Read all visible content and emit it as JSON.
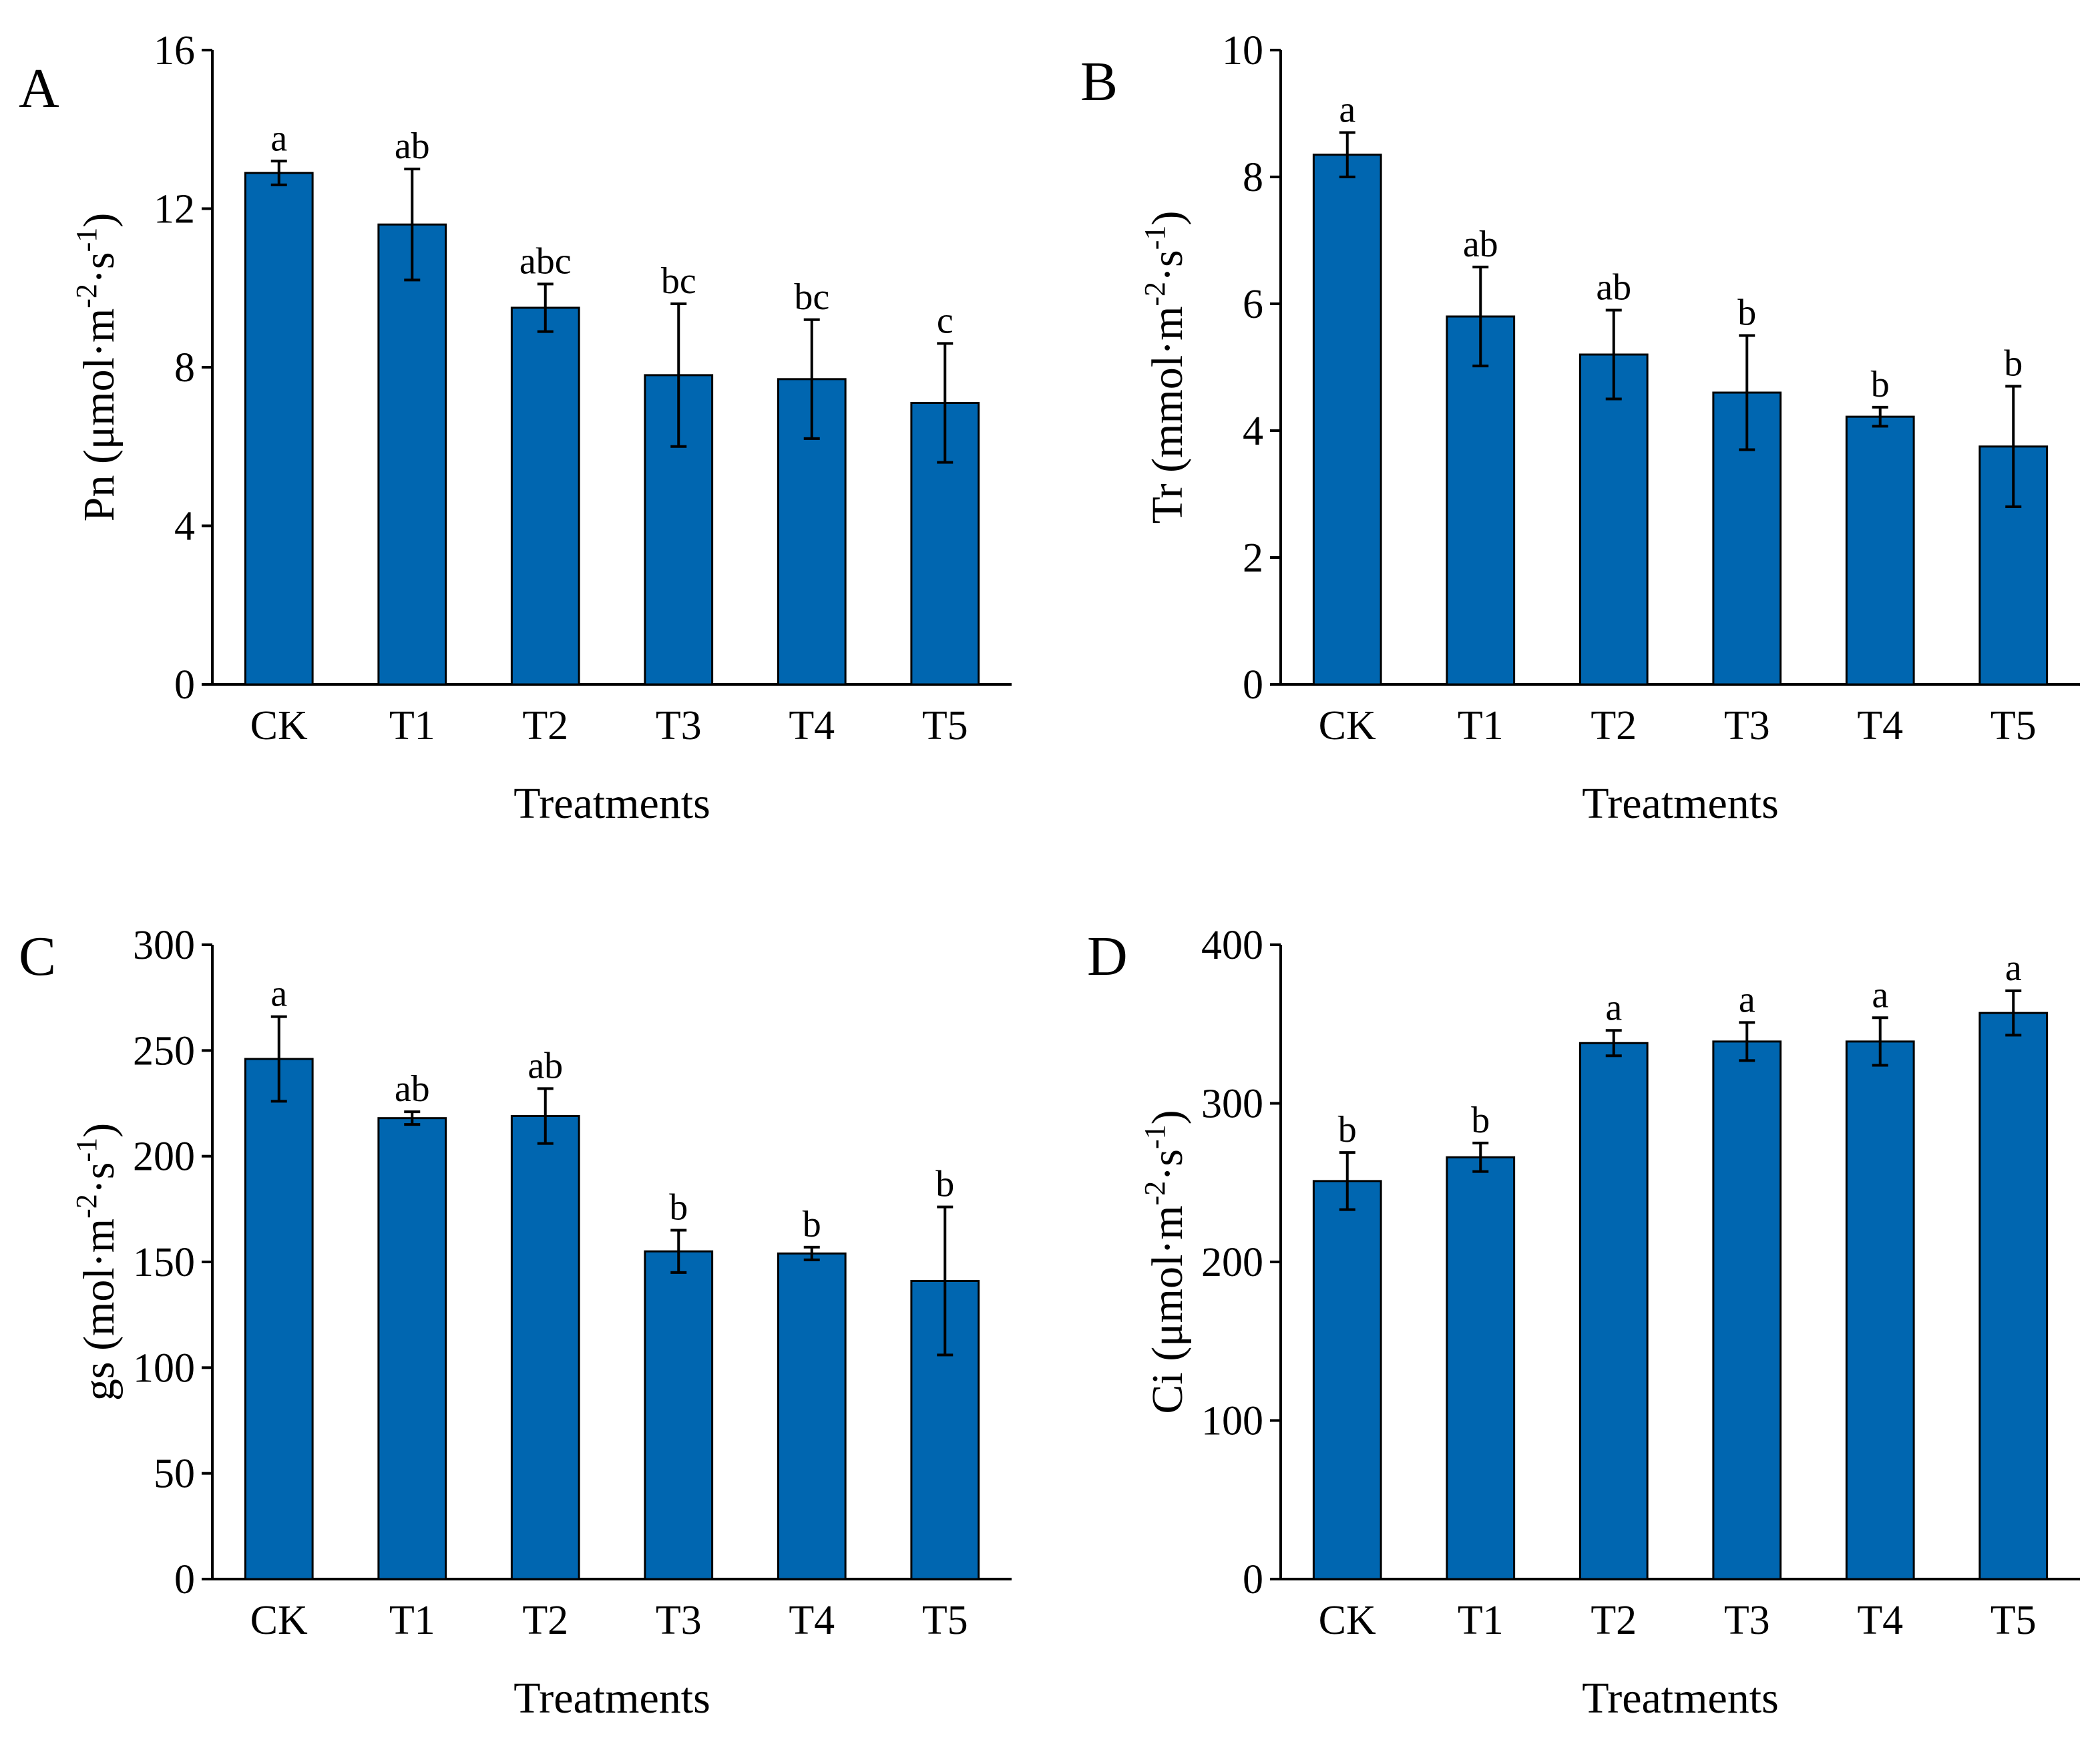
{
  "figure": {
    "colors": {
      "bar_fill": "#0066B0",
      "axis": "#000000"
    }
  },
  "chart_data": [
    {
      "panel": "A",
      "type": "bar",
      "categories": [
        "CK",
        "T1",
        "T2",
        "T3",
        "T4",
        "T5"
      ],
      "values": [
        12.9,
        11.6,
        9.5,
        7.8,
        7.7,
        7.1
      ],
      "errors": [
        0.3,
        1.4,
        0.6,
        1.8,
        1.5,
        1.5
      ],
      "significance": [
        "a",
        "ab",
        "abc",
        "bc",
        "bc",
        "c"
      ],
      "ylim": [
        0,
        16
      ],
      "yticks": [
        0,
        4,
        8,
        12,
        16
      ],
      "ylabel_main": "Pn (μmol·m",
      "ylabel_sup1": "-2",
      "ylabel_mid": "·s",
      "ylabel_sup2": "-1",
      "ylabel_end": ")",
      "xlabel": "Treatments"
    },
    {
      "panel": "B",
      "type": "bar",
      "categories": [
        "CK",
        "T1",
        "T2",
        "T3",
        "T4",
        "T5"
      ],
      "values": [
        8.35,
        5.8,
        5.2,
        4.6,
        4.22,
        3.75
      ],
      "errors": [
        0.35,
        0.78,
        0.7,
        0.9,
        0.15,
        0.95
      ],
      "significance": [
        "a",
        "ab",
        "ab",
        "b",
        "b",
        "b"
      ],
      "ylim": [
        0,
        10
      ],
      "yticks": [
        0,
        2,
        4,
        6,
        8,
        10
      ],
      "ylabel_main": "Tr (mmol·m",
      "ylabel_sup1": "-2",
      "ylabel_mid": "·s",
      "ylabel_sup2": "-1",
      "ylabel_end": ")",
      "xlabel": "Treatments"
    },
    {
      "panel": "C",
      "type": "bar",
      "categories": [
        "CK",
        "T1",
        "T2",
        "T3",
        "T4",
        "T5"
      ],
      "values": [
        246,
        218,
        219,
        155,
        154,
        141
      ],
      "errors": [
        20,
        3,
        13,
        10,
        3,
        35
      ],
      "significance": [
        "a",
        "ab",
        "ab",
        "b",
        "b",
        "b"
      ],
      "ylim": [
        0,
        300
      ],
      "yticks": [
        0,
        50,
        100,
        150,
        200,
        250,
        300
      ],
      "ylabel_main": "gs (mol·m",
      "ylabel_sup1": "-2",
      "ylabel_mid": "·s",
      "ylabel_sup2": "-1",
      "ylabel_end": ")",
      "xlabel": "Treatments"
    },
    {
      "panel": "D",
      "type": "bar",
      "categories": [
        "CK",
        "T1",
        "T2",
        "T3",
        "T4",
        "T5"
      ],
      "values": [
        251,
        266,
        338,
        339,
        339,
        357
      ],
      "errors": [
        18,
        9,
        8,
        12,
        15,
        14
      ],
      "significance": [
        "b",
        "b",
        "a",
        "a",
        "a",
        "a"
      ],
      "ylim": [
        0,
        400
      ],
      "yticks": [
        0,
        100,
        200,
        300,
        400
      ],
      "ylabel_main": "Ci (μmol·m",
      "ylabel_sup1": "-2",
      "ylabel_mid": "·s",
      "ylabel_sup2": "-1",
      "ylabel_end": ")",
      "xlabel": "Treatments"
    }
  ]
}
